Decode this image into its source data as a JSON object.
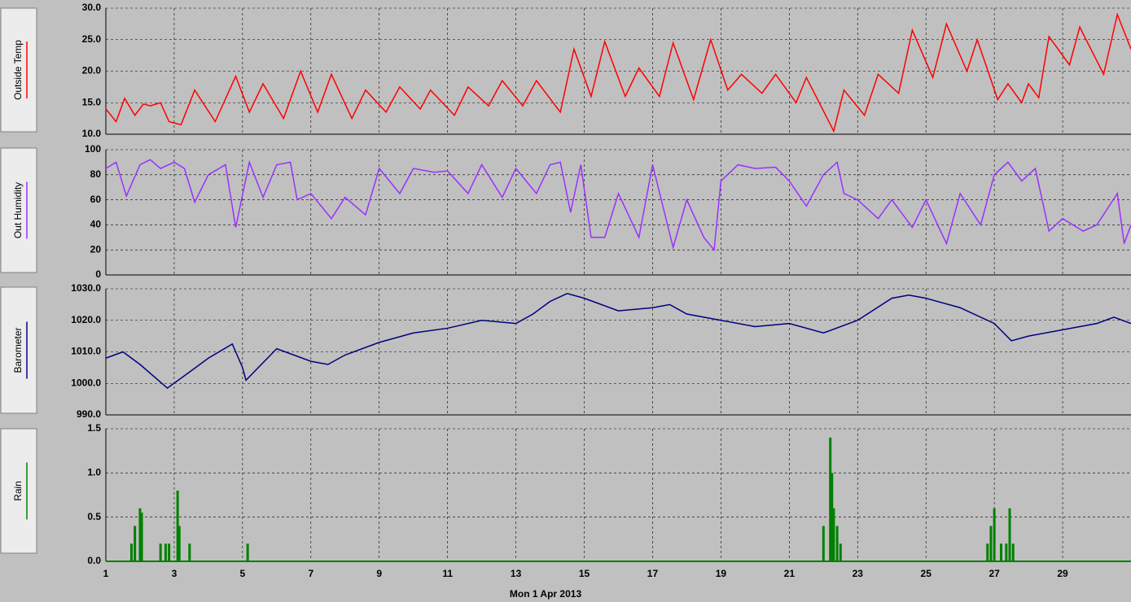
{
  "chart_data": [
    {
      "type": "line",
      "grid": true,
      "xlim": [
        1,
        31
      ],
      "xticks": [
        1,
        3,
        5,
        7,
        9,
        11,
        13,
        15,
        17,
        19,
        21,
        23,
        25,
        27,
        29
      ],
      "ylim": [
        10,
        30
      ],
      "yticks": [
        {
          "value": 10,
          "label": "10.0"
        },
        {
          "value": 15,
          "label": "15.0"
        },
        {
          "value": 20,
          "label": "20.0"
        },
        {
          "value": 25,
          "label": "25.0"
        },
        {
          "value": 30,
          "label": "30.0"
        }
      ],
      "x": [
        1,
        1.3,
        1.55,
        1.85,
        2.1,
        2.3,
        2.6,
        2.85,
        3.2,
        3.6,
        4.2,
        4.8,
        5.2,
        5.6,
        6.2,
        6.7,
        7.2,
        7.6,
        8.2,
        8.6,
        9.2,
        9.6,
        10.2,
        10.5,
        11.2,
        11.6,
        12.2,
        12.6,
        13.2,
        13.6,
        14.3,
        14.7,
        15.2,
        15.6,
        16.2,
        16.6,
        17.2,
        17.6,
        18.2,
        18.7,
        19.2,
        19.6,
        20.2,
        20.6,
        21.2,
        21.5,
        22.3,
        22.6,
        23.2,
        23.6,
        24.2,
        24.6,
        25.2,
        25.6,
        26.2,
        26.5,
        27.1,
        27.4,
        27.8,
        28.0,
        28.3,
        28.6,
        29.2,
        29.5,
        30.2,
        30.6,
        31
      ],
      "series": [
        {
          "name": "Outside Temp",
          "color": "#ff0000",
          "values": [
            14,
            12,
            15.7,
            13,
            14.8,
            14.5,
            15,
            12,
            11.5,
            17,
            12,
            19.2,
            13.5,
            18,
            12.5,
            20,
            13.5,
            19.5,
            12.5,
            17,
            13.5,
            17.5,
            14,
            17,
            13,
            17.5,
            14.5,
            18.5,
            14.5,
            18.5,
            13.5,
            23.5,
            16,
            24.7,
            16,
            20.5,
            16,
            24.5,
            15.5,
            25,
            17,
            19.5,
            16.5,
            19.5,
            15,
            19,
            10.5,
            17,
            13,
            19.5,
            16.5,
            26.5,
            19,
            27.5,
            20,
            25,
            15.5,
            18,
            15,
            18,
            15.8,
            25.5,
            21,
            27,
            19.5,
            29,
            23.5
          ]
        }
      ]
    },
    {
      "type": "line",
      "grid": true,
      "xlim": [
        1,
        31
      ],
      "xticks": [
        1,
        3,
        5,
        7,
        9,
        11,
        13,
        15,
        17,
        19,
        21,
        23,
        25,
        27,
        29
      ],
      "ylim": [
        0,
        100
      ],
      "yticks": [
        0,
        20,
        40,
        60,
        80,
        100
      ],
      "x": [
        1,
        1.3,
        1.6,
        2,
        2.3,
        2.6,
        3,
        3.3,
        3.6,
        4,
        4.5,
        4.8,
        5.2,
        5.6,
        6,
        6.4,
        6.6,
        7,
        7.6,
        8,
        8.6,
        9,
        9.6,
        10,
        10.6,
        11,
        11.6,
        12,
        12.6,
        13,
        13.6,
        14,
        14.3,
        14.6,
        14.9,
        15.2,
        15.6,
        16,
        16.6,
        17,
        17.6,
        18,
        18.5,
        18.8,
        19,
        19.5,
        20,
        20.6,
        21,
        21.5,
        22,
        22.4,
        22.6,
        23,
        23.6,
        24,
        24.6,
        25,
        25.6,
        26,
        26.6,
        27,
        27.4,
        27.8,
        28.2,
        28.6,
        29,
        29.6,
        30,
        30.6,
        30.8,
        31
      ],
      "series": [
        {
          "name": "Out Humidity",
          "color": "#9b30ff",
          "values": [
            85,
            90,
            63,
            88,
            92,
            85,
            90,
            85,
            58,
            80,
            88,
            38,
            90,
            62,
            88,
            90,
            60,
            65,
            45,
            62,
            48,
            85,
            65,
            85,
            82,
            83,
            65,
            88,
            62,
            85,
            65,
            88,
            90,
            50,
            88,
            30,
            30,
            65,
            30,
            88,
            22,
            60,
            30,
            20,
            75,
            88,
            85,
            86,
            75,
            55,
            80,
            90,
            65,
            60,
            45,
            60,
            38,
            60,
            25,
            65,
            40,
            80,
            90,
            75,
            85,
            35,
            45,
            35,
            40,
            65,
            25,
            40
          ]
        }
      ]
    },
    {
      "type": "line",
      "grid": true,
      "xlim": [
        1,
        31
      ],
      "xticks": [
        1,
        3,
        5,
        7,
        9,
        11,
        13,
        15,
        17,
        19,
        21,
        23,
        25,
        27,
        29
      ],
      "ylim": [
        990,
        1030
      ],
      "yticks": [
        {
          "value": 990,
          "label": "990.0"
        },
        {
          "value": 1000,
          "label": "1000.0"
        },
        {
          "value": 1010,
          "label": "1010.0"
        },
        {
          "value": 1020,
          "label": "1020.0"
        },
        {
          "value": 1030,
          "label": "1030.0"
        }
      ],
      "x": [
        1,
        1.5,
        2,
        2.8,
        3.5,
        4,
        4.7,
        5,
        5.1,
        6,
        7,
        7.5,
        8,
        9,
        10,
        11,
        12,
        13,
        13.5,
        14,
        14.5,
        15,
        16,
        17,
        17.5,
        18,
        19,
        20,
        21,
        22,
        23,
        24,
        24.5,
        25,
        26,
        27,
        27.5,
        28,
        29,
        30,
        30.5,
        31
      ],
      "series": [
        {
          "name": "Barometer",
          "color": "#000080",
          "values": [
            1008,
            1010,
            1006,
            998.5,
            1004,
            1008,
            1012.5,
            1005,
            1001,
            1011,
            1007,
            1006,
            1009,
            1013,
            1016,
            1017.5,
            1020,
            1019,
            1022,
            1026,
            1028.5,
            1027,
            1023,
            1024,
            1025,
            1022,
            1020,
            1018,
            1019,
            1016,
            1020,
            1027,
            1028,
            1027,
            1024,
            1019,
            1013.5,
            1015,
            1017,
            1019,
            1021,
            1019
          ]
        }
      ]
    },
    {
      "type": "bar",
      "grid": true,
      "xlim": [
        1,
        31
      ],
      "xticks": [
        1,
        3,
        5,
        7,
        9,
        11,
        13,
        15,
        17,
        19,
        21,
        23,
        25,
        27,
        29
      ],
      "ylim": [
        0,
        1.5
      ],
      "yticks": [
        {
          "value": 0,
          "label": "0.0"
        },
        {
          "value": 0.5,
          "label": "0.5"
        },
        {
          "value": 1,
          "label": "1.0"
        },
        {
          "value": 1.5,
          "label": "1.5"
        }
      ],
      "x_label": "Mon 1 Apr 2013",
      "x": [
        1.75,
        1.85,
        2.0,
        2.05,
        2.6,
        2.75,
        2.85,
        3.1,
        3.15,
        3.45,
        5.15,
        22.0,
        22.2,
        22.25,
        22.3,
        22.4,
        22.5,
        26.8,
        26.9,
        27.0,
        27.2,
        27.35,
        27.45,
        27.55
      ],
      "series": [
        {
          "name": "Rain",
          "color": "#008000",
          "values": [
            0.2,
            0.4,
            0.6,
            0.55,
            0.2,
            0.2,
            0.2,
            0.8,
            0.4,
            0.2,
            0.2,
            0.4,
            1.4,
            1.0,
            0.6,
            0.4,
            0.2,
            0.2,
            0.4,
            0.6,
            0.2,
            0.2,
            0.6,
            0.2
          ]
        }
      ]
    }
  ]
}
